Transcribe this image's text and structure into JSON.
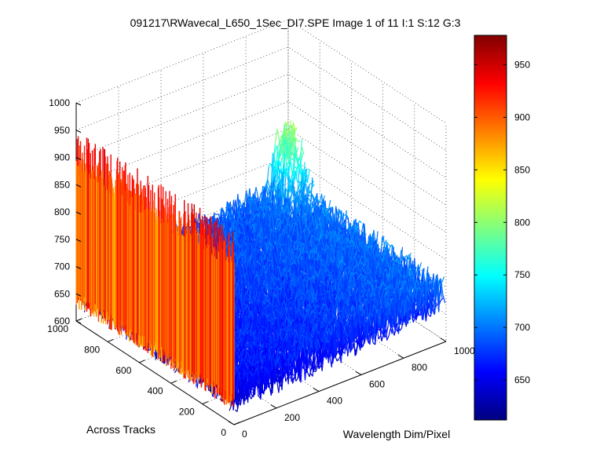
{
  "chart_data": {
    "type": "surface",
    "title": "091217\\RWavecal_L650_1Sec_DI7.SPE  Image 1 of 11  I:1  S:12  G:3",
    "xlabel": "Wavelength Dim/Pixel",
    "ylabel": "Across Tracks",
    "zlabel": "",
    "xlim": [
      0,
      1000
    ],
    "ylim": [
      0,
      1000
    ],
    "zlim": [
      600,
      1000
    ],
    "x_ticks": [
      0,
      200,
      400,
      600,
      800,
      1000
    ],
    "y_ticks": [
      0,
      200,
      400,
      600,
      800,
      1000
    ],
    "z_ticks": [
      600,
      650,
      700,
      750,
      800,
      850,
      900,
      950,
      1000
    ],
    "grid": true,
    "colormap": "jet",
    "colorbar": {
      "range": [
        612,
        978
      ],
      "ticks": [
        650,
        700,
        750,
        800,
        850,
        900,
        950
      ]
    },
    "series": [
      {
        "region": "low-x edge (wavelength pixel 0), all tracks",
        "level_range": [
          880,
          960
        ]
      },
      {
        "region": "main surface",
        "level_range": [
          640,
          740
        ]
      },
      {
        "region": "peak near far corner (x~1000, tracks~1000)",
        "level_range": [
          800,
          850
        ]
      }
    ]
  }
}
